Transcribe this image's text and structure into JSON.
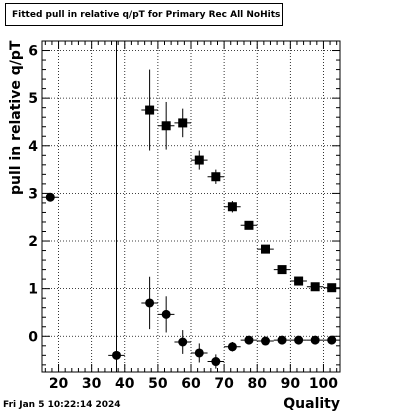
{
  "chart_data": {
    "type": "scatter",
    "title": "Fitted pull in relative q/pT for Primary Rec All NoHits",
    "xlabel": "Quality",
    "ylabel": "pull in relative q/pT",
    "xlim": [
      15,
      105
    ],
    "ylim": [
      -0.75,
      6.2
    ],
    "xticks": [
      20,
      30,
      40,
      50,
      60,
      70,
      80,
      90,
      100
    ],
    "yticks": [
      0,
      1,
      2,
      3,
      4,
      5,
      6
    ],
    "grid": true,
    "series": [
      {
        "marker": "square",
        "color": "#000000",
        "points": [
          {
            "x": 47.5,
            "y": 4.75,
            "yerr": 0.85
          },
          {
            "x": 52.5,
            "y": 4.42,
            "yerr": 0.5
          },
          {
            "x": 57.5,
            "y": 4.48,
            "yerr": 0.3
          },
          {
            "x": 62.5,
            "y": 3.7,
            "yerr": 0.2
          },
          {
            "x": 67.5,
            "y": 3.35,
            "yerr": 0.15
          },
          {
            "x": 72.5,
            "y": 2.72,
            "yerr": 0.12
          },
          {
            "x": 77.5,
            "y": 2.33,
            "yerr": 0.07
          },
          {
            "x": 82.5,
            "y": 1.83,
            "yerr": 0.05
          },
          {
            "x": 87.5,
            "y": 1.4,
            "yerr": 0.04
          },
          {
            "x": 92.5,
            "y": 1.16,
            "yerr": 0.03
          },
          {
            "x": 97.5,
            "y": 1.04,
            "yerr": 0.02
          },
          {
            "x": 102.5,
            "y": 1.02,
            "yerr": 0.02
          }
        ]
      },
      {
        "marker": "circle",
        "color": "#000000",
        "points": [
          {
            "x": 17.5,
            "y": 2.92,
            "yerr": 0
          },
          {
            "x": 37.5,
            "y": -0.4,
            "yerr": 0
          },
          {
            "x": 47.5,
            "y": 0.7,
            "yerr": 0.55
          },
          {
            "x": 52.5,
            "y": 0.46,
            "yerr": 0.38
          },
          {
            "x": 57.5,
            "y": -0.12,
            "yerr": 0.25
          },
          {
            "x": 62.5,
            "y": -0.35,
            "yerr": 0.2
          },
          {
            "x": 67.5,
            "y": -0.53,
            "yerr": 0.15
          },
          {
            "x": 72.5,
            "y": -0.22,
            "yerr": 0.1
          },
          {
            "x": 77.5,
            "y": -0.08,
            "yerr": 0.05
          },
          {
            "x": 82.5,
            "y": -0.1,
            "yerr": 0.04
          },
          {
            "x": 87.5,
            "y": -0.08,
            "yerr": 0.03
          },
          {
            "x": 92.5,
            "y": -0.08,
            "yerr": 0.02
          },
          {
            "x": 97.5,
            "y": -0.08,
            "yerr": 0.02
          },
          {
            "x": 102.5,
            "y": -0.08,
            "yerr": 0.02
          }
        ]
      }
    ],
    "extra_error_lines": [
      {
        "x": 37.5,
        "y_top": 6.2,
        "y_bottom": -0.75
      }
    ]
  },
  "footer": {
    "datestamp": "Fri Jan  5 10:22:14 2024"
  }
}
